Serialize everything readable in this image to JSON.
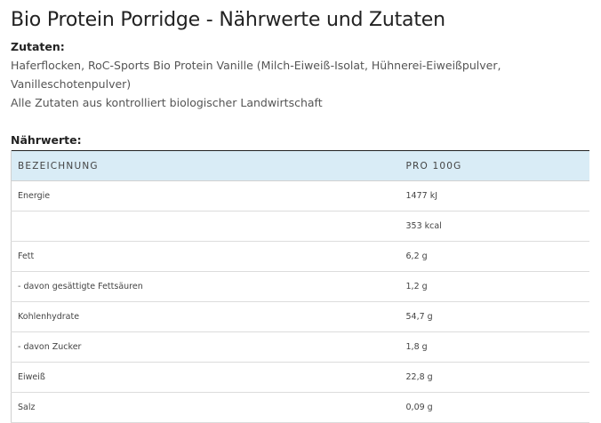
{
  "page_title": "Bio Protein Porridge - Nährwerte und Zutaten",
  "ingredients": {
    "label": "Zutaten:",
    "line1": "Haferflocken, RoC-Sports Bio Protein Vanille (Milch-Eiweiß-Isolat, Hühnerei-Eiweißpulver, Vanilleschotenpulver)",
    "line2": "Alle Zutaten aus kontrolliert biologischer Landwirtschaft"
  },
  "nutrition": {
    "label": "Nährwerte:",
    "columns": [
      "BEZEICHNUNG",
      "PRO 100G"
    ],
    "rows": [
      {
        "name": "Energie",
        "value": "1477 kJ"
      },
      {
        "name": "",
        "value": "353 kcal"
      },
      {
        "name": "Fett",
        "value": "6,2 g"
      },
      {
        "name": "- davon gesättigte Fettsäuren",
        "value": "1,2 g"
      },
      {
        "name": "Kohlenhydrate",
        "value": "54,7 g"
      },
      {
        "name": "- davon Zucker",
        "value": "1,8 g"
      },
      {
        "name": "Eiweiß",
        "value": "22,8 g"
      },
      {
        "name": "Salz",
        "value": "0,09 g"
      }
    ]
  },
  "colors": {
    "header_bg": "#d9ecf6",
    "text": "#444444"
  }
}
